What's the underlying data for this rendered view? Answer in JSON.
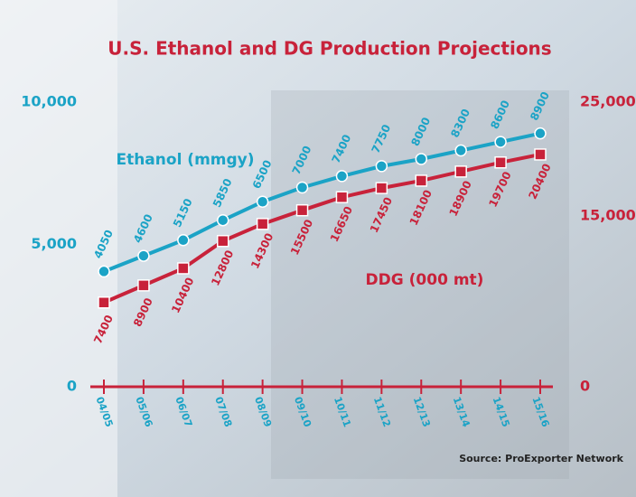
{
  "chart_data": {
    "type": "line",
    "title": "U.S. Ethanol and DG Production Projections",
    "source": "Source: ProExporter Network",
    "categories": [
      "04/05",
      "05/06",
      "06/07",
      "07/08",
      "08/09",
      "09/10",
      "10/11",
      "11/12",
      "12/13",
      "13/14",
      "14/15",
      "15/16"
    ],
    "series": [
      {
        "name": "Ethanol (mmgy)",
        "color": "#1ba3c6",
        "axis": "y",
        "values": [
          4050,
          4600,
          5150,
          5850,
          6500,
          7000,
          7400,
          7750,
          8000,
          8300,
          8600,
          8900
        ]
      },
      {
        "name": "DDG (000 mt)",
        "color": "#c8223a",
        "axis": "y2",
        "values": [
          7400,
          8900,
          10400,
          12800,
          14300,
          15500,
          16650,
          17450,
          18100,
          18900,
          19700,
          20400
        ]
      }
    ],
    "ylim": [
      0,
      10000
    ],
    "yticks": [
      0,
      {
        "value": 5000,
        "label": "5,000"
      },
      {
        "value": 10000,
        "label": "10,000"
      }
    ],
    "y2lim": [
      0,
      25000
    ],
    "y2ticks": [
      0,
      {
        "value": 15000,
        "label": "15,000"
      },
      {
        "value": 25000,
        "label": "25,000"
      }
    ]
  }
}
